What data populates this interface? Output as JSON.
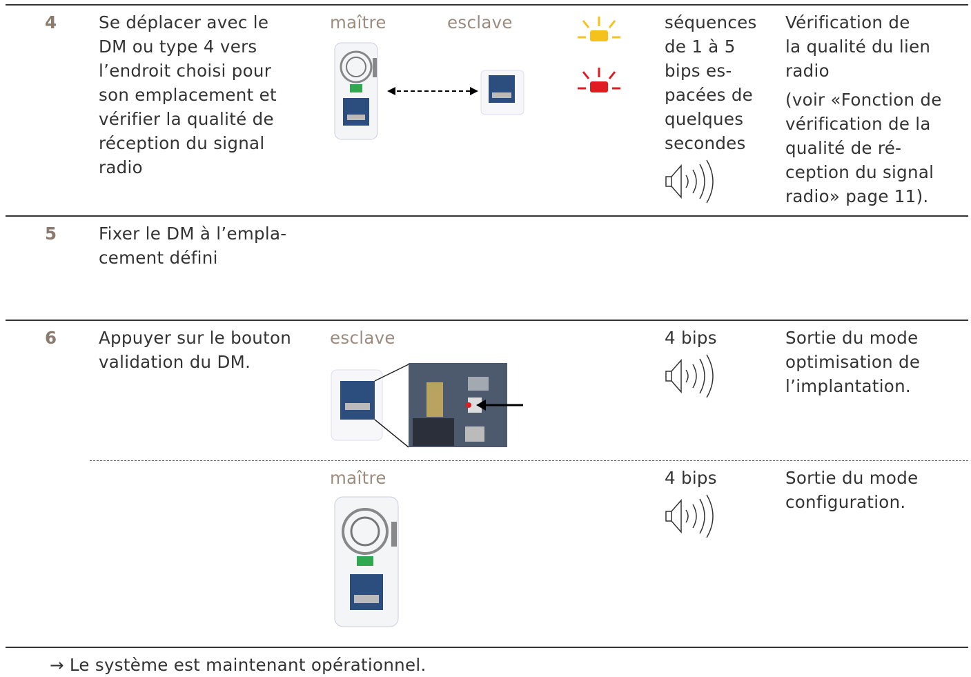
{
  "rows": [
    {
      "step": "4",
      "action": [
        "Se déplacer avec le",
        "DM ou type 4 vers",
        "l’endroit choisi pour",
        "son emplacement et",
        "vérifier la qualité de",
        "réception du signal",
        "radio"
      ],
      "labels": [
        "maître",
        "esclave"
      ],
      "signal": [
        "séquences",
        "de 1 à 5",
        "bips es-",
        "pacées de",
        "quelques",
        "secondes"
      ],
      "result": [
        [
          "Vérification de",
          "la qualité du lien",
          "radio"
        ],
        [
          "(voir «Fonction de",
          "vérification de la",
          "qualité de ré-",
          "ception du signal",
          "radio» page 11)."
        ]
      ]
    },
    {
      "step": "5",
      "action": [
        "Fixer le DM à l’empla-",
        "cement défini"
      ]
    },
    {
      "step": "6",
      "action": [
        "Appuyer sur le bouton",
        "validation du DM."
      ],
      "parts": [
        {
          "label": "esclave",
          "signal": "4 bips",
          "result": [
            "Sortie du mode",
            "optimisation de",
            "l’implantation."
          ]
        },
        {
          "label": "maître",
          "signal": "4 bips",
          "result": [
            "Sortie du mode",
            "configuration."
          ]
        }
      ]
    }
  ],
  "footer": "→ Le système est maintenant opérationnel."
}
